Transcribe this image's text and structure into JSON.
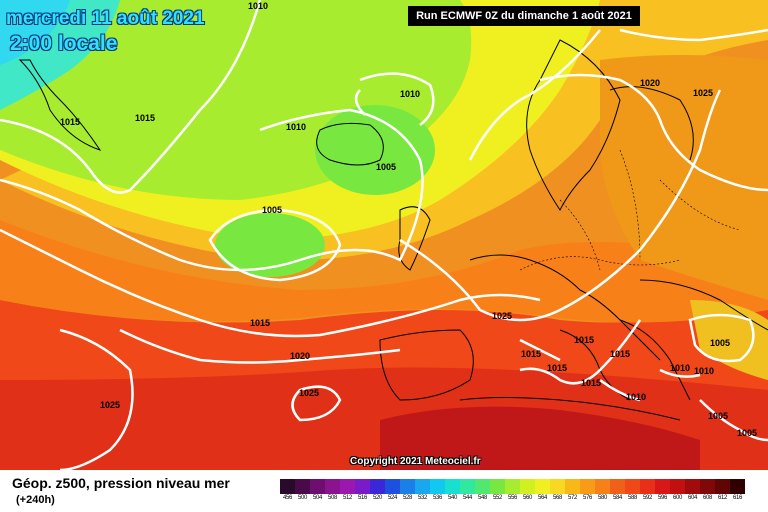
{
  "header": {
    "date_line": "mercredi 11 août 2021",
    "time_line": "2:00 locale",
    "run_info": "Run ECMWF 0Z du dimanche 1 août 2021"
  },
  "copyright": "Copyright 2021 Meteociel.fr",
  "footer": {
    "title": "Géop. z500, pression niveau mer",
    "forecast_hours": "(+240h)"
  },
  "isobar_labels": [
    "1010",
    "1015",
    "1010",
    "1010",
    "1005",
    "1015",
    "1005",
    "1015",
    "1020",
    "1025",
    "1025",
    "1020",
    "1025",
    "1025",
    "1015",
    "1015",
    "1015",
    "1015",
    "1015",
    "1010",
    "1010",
    "1010",
    "1005",
    "1005",
    "1005"
  ],
  "legend": {
    "values": [
      "456",
      "500",
      "504",
      "508",
      "512",
      "516",
      "520",
      "524",
      "528",
      "532",
      "536",
      "540",
      "544",
      "548",
      "552",
      "556",
      "560",
      "564",
      "568",
      "572",
      "576",
      "580",
      "584",
      "588",
      "592",
      "596",
      "600",
      "604",
      "608",
      "612",
      "616"
    ],
    "colors": [
      "#2a0a2a",
      "#4a0a4a",
      "#6e0e70",
      "#8a1490",
      "#9a18b0",
      "#7a1ac8",
      "#3a28d8",
      "#1e50e0",
      "#1a80e8",
      "#18a8f0",
      "#10c8f0",
      "#18e0d0",
      "#30e8a0",
      "#50e870",
      "#78e840",
      "#a8ec30",
      "#d0f020",
      "#f0f020",
      "#f8d820",
      "#f8b818",
      "#f89c18",
      "#f88018",
      "#f06018",
      "#f04818",
      "#e83018",
      "#d81818",
      "#c01010",
      "#a00c0c",
      "#800808",
      "#600404",
      "#300000"
    ]
  }
}
